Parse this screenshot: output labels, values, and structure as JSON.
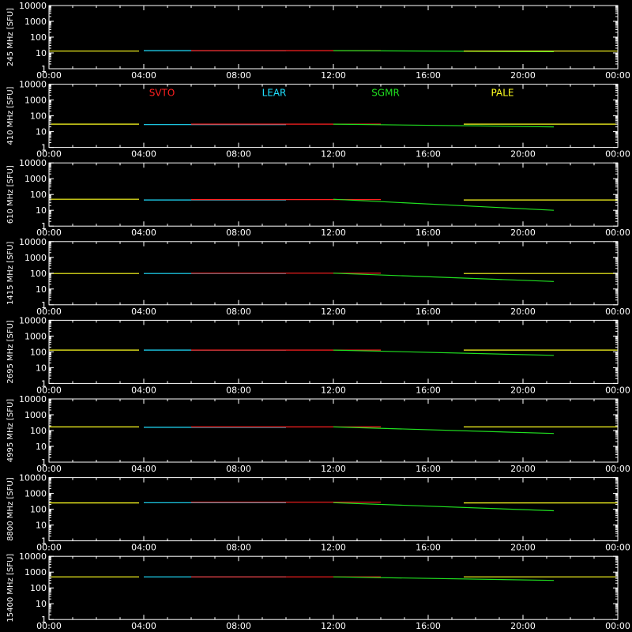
{
  "colors": {
    "background": "#000000",
    "axes": "#ffffff",
    "SVTO": "#ff2020",
    "LEAR": "#20e0ff",
    "SGMR": "#20e020",
    "PALE": "#ffff20"
  },
  "chart_data": [
    {
      "type": "line",
      "ylabel": "245 MHz  [SFU]",
      "yscale": "log",
      "ylim": [
        1,
        10000
      ],
      "x_ticks": [
        "00:00",
        "04:00",
        "08:00",
        "12:00",
        "16:00",
        "20:00",
        "00:00"
      ],
      "y_ticks": [
        "10000",
        "1000",
        "100",
        "10",
        "1"
      ],
      "legend": [],
      "series": [
        {
          "name": "PALE",
          "x": [
            0,
            3.8
          ],
          "y": [
            13,
            13
          ]
        },
        {
          "name": "LEAR",
          "x": [
            4.0,
            10.0
          ],
          "y": [
            14,
            14
          ]
        },
        {
          "name": "SVTO",
          "x": [
            6.0,
            14.0
          ],
          "y": [
            14,
            14
          ]
        },
        {
          "name": "SGMR",
          "x": [
            12.0,
            21.3
          ],
          "y": [
            14,
            12
          ]
        },
        {
          "name": "PALE",
          "x": [
            17.5,
            24.0
          ],
          "y": [
            13,
            13
          ]
        }
      ]
    },
    {
      "type": "line",
      "ylabel": "410 MHz  [SFU]",
      "yscale": "log",
      "ylim": [
        1,
        10000
      ],
      "x_ticks": [
        "00:00",
        "04:00",
        "08:00",
        "12:00",
        "16:00",
        "20:00",
        "00:00"
      ],
      "y_ticks": [
        "10000",
        "1000",
        "100",
        "10",
        "1"
      ],
      "legend": [
        "SVTO",
        "LEAR",
        "SGMR",
        "PALE"
      ],
      "series": [
        {
          "name": "PALE",
          "x": [
            0,
            3.8
          ],
          "y": [
            30,
            30
          ]
        },
        {
          "name": "LEAR",
          "x": [
            4.0,
            10.0
          ],
          "y": [
            28,
            28
          ]
        },
        {
          "name": "SVTO",
          "x": [
            6.0,
            14.0
          ],
          "y": [
            30,
            30
          ]
        },
        {
          "name": "SGMR",
          "x": [
            12.0,
            21.3
          ],
          "y": [
            30,
            20
          ]
        },
        {
          "name": "PALE",
          "x": [
            17.5,
            24.0
          ],
          "y": [
            30,
            30
          ]
        }
      ]
    },
    {
      "type": "line",
      "ylabel": "610  MHz  [SFU]",
      "yscale": "log",
      "ylim": [
        1,
        10000
      ],
      "x_ticks": [
        "00:00",
        "04:00",
        "08:00",
        "12:00",
        "16:00",
        "20:00",
        "00:00"
      ],
      "y_ticks": [
        "10000",
        "1000",
        "100",
        "10",
        "1"
      ],
      "legend": [],
      "series": [
        {
          "name": "PALE",
          "x": [
            0,
            3.8
          ],
          "y": [
            50,
            50
          ]
        },
        {
          "name": "LEAR",
          "x": [
            4.0,
            10.0
          ],
          "y": [
            45,
            45
          ]
        },
        {
          "name": "SVTO",
          "x": [
            6.0,
            14.0
          ],
          "y": [
            48,
            48
          ]
        },
        {
          "name": "SGMR",
          "x": [
            12.0,
            21.3
          ],
          "y": [
            50,
            10
          ]
        },
        {
          "name": "PALE",
          "x": [
            17.5,
            24.0
          ],
          "y": [
            45,
            45
          ]
        }
      ]
    },
    {
      "type": "line",
      "ylabel": "1415  MHz  [SFU]",
      "yscale": "log",
      "ylim": [
        1,
        10000
      ],
      "x_ticks": [
        "00:00",
        "04:00",
        "08:00",
        "12:00",
        "16:00",
        "20:00",
        "00:00"
      ],
      "y_ticks": [
        "10000",
        "1000",
        "100",
        "10",
        "1"
      ],
      "legend": [],
      "series": [
        {
          "name": "PALE",
          "x": [
            0,
            3.8
          ],
          "y": [
            95,
            95
          ]
        },
        {
          "name": "LEAR",
          "x": [
            4.0,
            10.0
          ],
          "y": [
            95,
            95
          ]
        },
        {
          "name": "SVTO",
          "x": [
            6.0,
            14.0
          ],
          "y": [
            100,
            100
          ]
        },
        {
          "name": "SGMR",
          "x": [
            12.0,
            21.3
          ],
          "y": [
            100,
            30
          ]
        },
        {
          "name": "PALE",
          "x": [
            17.5,
            24.0
          ],
          "y": [
            95,
            95
          ]
        }
      ]
    },
    {
      "type": "line",
      "ylabel": "2695  MHz  [SFU]",
      "yscale": "log",
      "ylim": [
        1,
        10000
      ],
      "x_ticks": [
        "00:00",
        "04:00",
        "08:00",
        "12:00",
        "16:00",
        "20:00",
        "00:00"
      ],
      "y_ticks": [
        "10000",
        "1000",
        "100",
        "10",
        "1"
      ],
      "legend": [],
      "series": [
        {
          "name": "PALE",
          "x": [
            0,
            3.8
          ],
          "y": [
            130,
            130
          ]
        },
        {
          "name": "LEAR",
          "x": [
            4.0,
            10.0
          ],
          "y": [
            130,
            130
          ]
        },
        {
          "name": "SVTO",
          "x": [
            6.0,
            14.0
          ],
          "y": [
            130,
            130
          ]
        },
        {
          "name": "SGMR",
          "x": [
            12.0,
            21.3
          ],
          "y": [
            130,
            60
          ]
        },
        {
          "name": "PALE",
          "x": [
            17.5,
            24.0
          ],
          "y": [
            130,
            130
          ]
        }
      ]
    },
    {
      "type": "line",
      "ylabel": "4995  MHz  [SFU]",
      "yscale": "log",
      "ylim": [
        1,
        10000
      ],
      "x_ticks": [
        "00:00",
        "04:00",
        "08:00",
        "12:00",
        "16:00",
        "20:00",
        "00:00"
      ],
      "y_ticks": [
        "10000",
        "1000",
        "100",
        "10",
        "1"
      ],
      "legend": [],
      "series": [
        {
          "name": "PALE",
          "x": [
            0,
            3.8
          ],
          "y": [
            170,
            170
          ]
        },
        {
          "name": "LEAR",
          "x": [
            4.0,
            10.0
          ],
          "y": [
            160,
            160
          ]
        },
        {
          "name": "SVTO",
          "x": [
            6.0,
            14.0
          ],
          "y": [
            170,
            170
          ]
        },
        {
          "name": "SGMR",
          "x": [
            12.0,
            21.3
          ],
          "y": [
            170,
            65
          ]
        },
        {
          "name": "PALE",
          "x": [
            17.5,
            24.0
          ],
          "y": [
            170,
            170
          ]
        }
      ]
    },
    {
      "type": "line",
      "ylabel": "8800  MHz  [SFU]",
      "yscale": "log",
      "ylim": [
        1,
        10000
      ],
      "x_ticks": [
        "00:00",
        "04:00",
        "08:00",
        "12:00",
        "16:00",
        "20:00",
        "00:00"
      ],
      "y_ticks": [
        "10000",
        "1000",
        "100",
        "10",
        "1"
      ],
      "legend": [],
      "series": [
        {
          "name": "PALE",
          "x": [
            0,
            3.8
          ],
          "y": [
            250,
            250
          ]
        },
        {
          "name": "LEAR",
          "x": [
            4.0,
            10.0
          ],
          "y": [
            260,
            260
          ]
        },
        {
          "name": "SVTO",
          "x": [
            6.0,
            14.0
          ],
          "y": [
            280,
            280
          ]
        },
        {
          "name": "SGMR",
          "x": [
            12.0,
            21.3
          ],
          "y": [
            260,
            80
          ]
        },
        {
          "name": "PALE",
          "x": [
            17.5,
            24.0
          ],
          "y": [
            250,
            250
          ]
        }
      ]
    },
    {
      "type": "line",
      "ylabel": "15400  MHz  [SFU]",
      "yscale": "log",
      "ylim": [
        1,
        10000
      ],
      "x_ticks": [
        "00:00",
        "04:00",
        "08:00",
        "12:00",
        "16:00",
        "20:00",
        "00:00"
      ],
      "y_ticks": [
        "10000",
        "1000",
        "100",
        "10",
        "1"
      ],
      "legend": [],
      "series": [
        {
          "name": "PALE",
          "x": [
            0,
            3.8
          ],
          "y": [
            500,
            500
          ]
        },
        {
          "name": "LEAR",
          "x": [
            4.0,
            10.0
          ],
          "y": [
            500,
            500
          ]
        },
        {
          "name": "SVTO",
          "x": [
            6.0,
            14.0
          ],
          "y": [
            500,
            500
          ]
        },
        {
          "name": "SGMR",
          "x": [
            12.0,
            21.3
          ],
          "y": [
            500,
            300
          ]
        },
        {
          "name": "PALE",
          "x": [
            17.5,
            24.0
          ],
          "y": [
            500,
            500
          ]
        }
      ]
    }
  ]
}
